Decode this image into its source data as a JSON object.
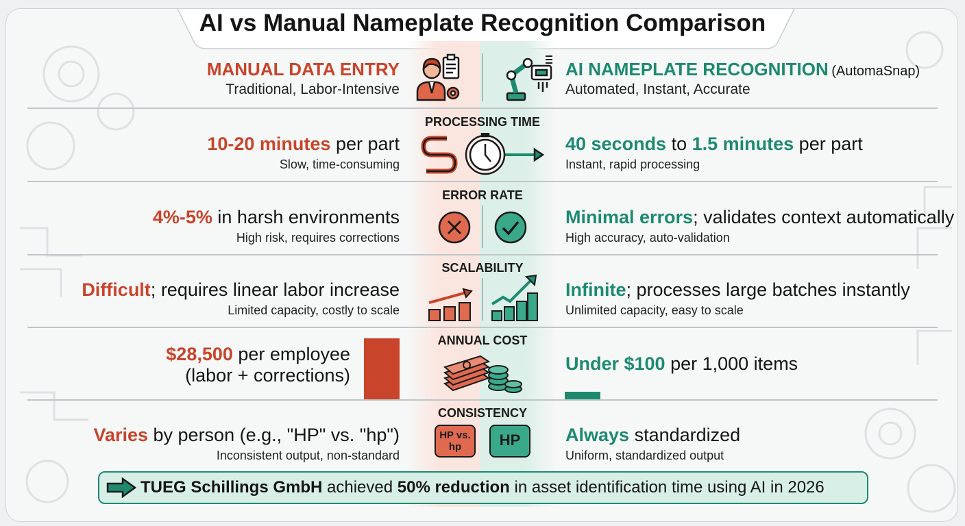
{
  "title": "AI vs Manual Nameplate Recognition Comparison",
  "colors": {
    "manual": "#c8442a",
    "ai": "#1d8a70",
    "banner_bg": "#d8efe8"
  },
  "manual": {
    "heading": "MANUAL DATA ENTRY",
    "subheading": "Traditional, Labor-Intensive",
    "icon": "worker-clipboard-icon"
  },
  "ai": {
    "heading": "AI NAMEPLATE RECOGNITION",
    "heading_suffix": "(AutomaSnap)",
    "subheading": "Automated, Instant, Accurate",
    "icon": "robot-arm-icon"
  },
  "rows": {
    "processing_time": {
      "category": "PROCESSING TIME",
      "icon": "stopwatch-arrow-icon",
      "manual": {
        "highlight": "10-20 minutes",
        "rest": " per part",
        "note": "Slow, time-consuming"
      },
      "ai": {
        "highlight1": "40 seconds",
        "mid": " to ",
        "highlight2": "1.5 minutes",
        "rest": " per part",
        "note": "Instant, rapid processing"
      }
    },
    "error_rate": {
      "category": "ERROR RATE",
      "manual_icon": "x-circle-icon",
      "ai_icon": "check-circle-icon",
      "manual": {
        "highlight": "4%-5%",
        "rest": " in harsh environments",
        "note": "High risk, requires corrections"
      },
      "ai": {
        "highlight": "Minimal errors",
        "rest": "; validates context automatically",
        "note": "High accuracy, auto-validation"
      }
    },
    "scalability": {
      "category": "SCALABILITY",
      "manual_icon": "slow-growth-chart-icon",
      "ai_icon": "fast-growth-chart-icon",
      "manual": {
        "highlight": "Difficult",
        "rest": "; requires linear labor increase",
        "note": "Limited capacity, costly to scale"
      },
      "ai": {
        "highlight": "Infinite",
        "rest": "; processes large batches instantly",
        "note": "Unlimited capacity, easy to scale"
      }
    },
    "annual_cost": {
      "category": "ANNUAL COST",
      "icon": "money-stack-icon",
      "manual": {
        "highlight": "$28,500",
        "rest": " per employee",
        "line2": "(labor + corrections)"
      },
      "ai": {
        "highlight": "Under $100",
        "rest": " per 1,000 items"
      }
    },
    "consistency": {
      "category": "CONSISTENCY",
      "manual_bubble": "HP vs. hp",
      "ai_bubble": "HP",
      "manual": {
        "highlight": "Varies",
        "rest": " by person (e.g., \"HP\" vs. \"hp\")",
        "note": "Inconsistent output, non-standard"
      },
      "ai": {
        "highlight": "Always",
        "rest": " standardized",
        "note": "Uniform, standardized output"
      }
    }
  },
  "banner": {
    "icon": "arrow-right-icon",
    "company": "TUEG Schillings GmbH",
    "mid": " achieved ",
    "highlight": "50% reduction",
    "rest": " in asset identification time using AI in 2026"
  }
}
